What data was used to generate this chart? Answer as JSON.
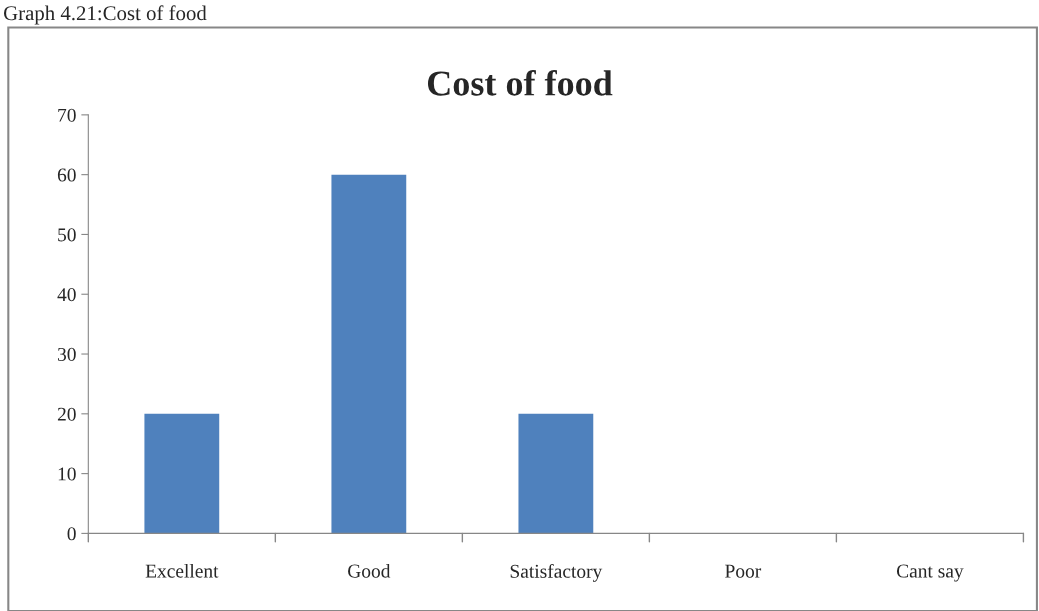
{
  "chart_data": {
    "type": "bar",
    "title": "Cost of food",
    "categories": [
      "Excellent",
      "Good",
      "Satisfactory",
      "Poor",
      "Cant say"
    ],
    "values": [
      20,
      60,
      20,
      0,
      0
    ],
    "color": "#4f81bd",
    "ylim": [
      0,
      70
    ],
    "yticks": [
      0,
      10,
      20,
      30,
      40,
      50,
      60,
      70
    ],
    "grid": false,
    "legend": false,
    "annotations": [
      "Graph 4.21:Cost of food"
    ]
  }
}
